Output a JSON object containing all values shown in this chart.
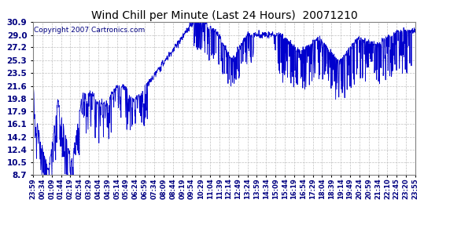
{
  "title": "Wind Chill per Minute (Last 24 Hours)  20071210",
  "copyright_text": "Copyright 2007 Cartronics.com",
  "yticks": [
    8.7,
    10.5,
    12.4,
    14.2,
    16.1,
    17.9,
    19.8,
    21.6,
    23.5,
    25.3,
    27.2,
    29.0,
    30.9
  ],
  "ymin": 8.7,
  "ymax": 30.9,
  "line_color": "#0000cd",
  "bg_color": "#ffffff",
  "grid_color": "#c0c0c0",
  "xtick_labels": [
    "23:59",
    "00:34",
    "01:09",
    "01:44",
    "02:19",
    "02:54",
    "03:29",
    "04:04",
    "04:39",
    "05:14",
    "05:49",
    "06:24",
    "06:59",
    "07:34",
    "08:09",
    "08:44",
    "09:19",
    "09:54",
    "10:29",
    "11:04",
    "11:39",
    "12:14",
    "12:49",
    "13:24",
    "13:59",
    "14:34",
    "15:09",
    "15:44",
    "16:19",
    "16:54",
    "17:29",
    "18:04",
    "18:39",
    "19:14",
    "19:49",
    "20:24",
    "20:59",
    "21:34",
    "22:10",
    "22:45",
    "23:20",
    "23:55"
  ],
  "num_points": 1440
}
